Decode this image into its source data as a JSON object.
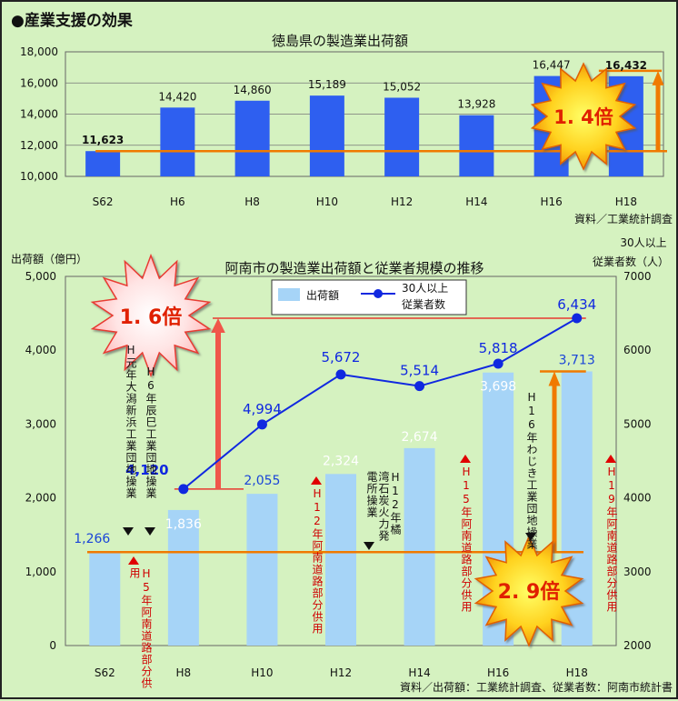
{
  "header": {
    "title": "●産業支援の効果"
  },
  "chart_data": [
    {
      "type": "bar",
      "title": "徳島県の製造業出荷額",
      "categories": [
        "S62",
        "H6",
        "H8",
        "H10",
        "H12",
        "H14",
        "H16",
        "H18"
      ],
      "values": [
        11623,
        14420,
        14860,
        15189,
        15052,
        13928,
        16447,
        16432
      ],
      "value_labels": [
        "11,623",
        "14,420",
        "14,860",
        "15,189",
        "15,052",
        "13,928",
        "16,447",
        "16,432"
      ],
      "ylim": [
        10000,
        18000
      ],
      "y_ticks": [
        "10,000",
        "12,000",
        "14,000",
        "16,000",
        "18,000"
      ],
      "bar_color": "#2e5ff0",
      "source": "資料／工業統計調査",
      "callout": "1. 4倍",
      "grid": true
    },
    {
      "type": "bar+line",
      "title": "阿南市の製造業出荷額と従業者規模の推移",
      "categories": [
        "S62",
        "H8",
        "H10",
        "H12",
        "H14",
        "H16",
        "H18"
      ],
      "ylabel_left": "出荷額（億円）",
      "ylabel_right": "30人以上従業者数（人）",
      "ylabel_right_lines": [
        "30人以上",
        "従業者数（人）"
      ],
      "ylim_left": [
        0,
        5000
      ],
      "ylim_right": [
        2000,
        7000
      ],
      "y_ticks_left": [
        "0",
        "1,000",
        "2,000",
        "3,000",
        "4,000",
        "5,000"
      ],
      "y_ticks_right": [
        "2000",
        "3000",
        "4000",
        "5000",
        "6000",
        "7000"
      ],
      "legend": {
        "bar": "出荷額",
        "line_lines": [
          "30人以上",
          "従業者数"
        ]
      },
      "series": [
        {
          "name": "出荷額",
          "type": "bar",
          "values": [
            1266,
            1836,
            2055,
            2324,
            2674,
            3698,
            3713
          ],
          "value_labels": [
            "1,266",
            "1,836",
            "2,055",
            "2,324",
            "2,674",
            "3,698",
            "3,713"
          ],
          "color": "#a6d4f7"
        },
        {
          "name": "30人以上従業者数",
          "type": "line",
          "values": [
            null,
            4120,
            4994,
            5672,
            5514,
            5818,
            6434
          ],
          "value_labels": [
            "",
            "4,120",
            "4,994",
            "5,672",
            "5,514",
            "5,818",
            "6,434"
          ],
          "color": "#1028e0"
        }
      ],
      "source": "資料／出荷額：工業統計調査、従業者数：阿南市統計書",
      "callouts": {
        "bar_growth": "2. 9倍",
        "line_growth": "1. 6倍"
      },
      "annotations": {
        "black": [
          "H元年大潟新浜工業団地操業",
          "H6年辰巳工業団地操業",
          "H12年橘湾石炭火力発電所操業",
          "H16年わじき工業団地操業"
        ],
        "red": [
          "H5年阿南道路部分供用",
          "H12年阿南道路部分供用",
          "H15年阿南道路部分供用",
          "H19年阿南道路部分供用"
        ]
      }
    }
  ]
}
